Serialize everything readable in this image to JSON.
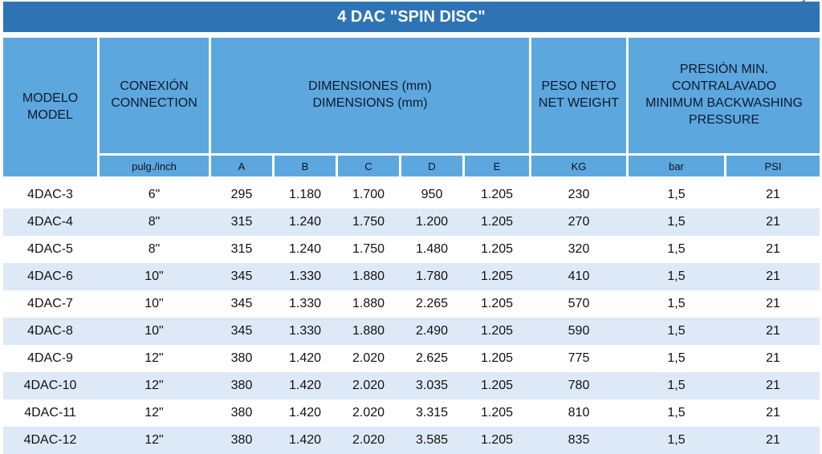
{
  "title": "4 DAC \"SPIN DISC\"",
  "headers": {
    "modelo": [
      "MODELO",
      "MODEL"
    ],
    "conexion": [
      "CONEXIÓN",
      "CONNECTION"
    ],
    "dimensiones": [
      "DIMENSIONES (mm)",
      "DIMENSIONS (mm)"
    ],
    "peso": [
      "PESO NETO",
      "NET WEIGHT"
    ],
    "presion": [
      "PRESIÓN MIN.",
      "CONTRALAVADO",
      "MINIMUM BACKWASHING",
      "PRESSURE"
    ]
  },
  "subheaders": [
    "pulg./inch",
    "A",
    "B",
    "C",
    "D",
    "E",
    "KG",
    "bar",
    "PSI"
  ],
  "rows": [
    [
      "4DAC-3",
      "6\"",
      "295",
      "1.180",
      "1.700",
      "950",
      "1.205",
      "230",
      "1,5",
      "21"
    ],
    [
      "4DAC-4",
      "8\"",
      "315",
      "1.240",
      "1.750",
      "1.200",
      "1.205",
      "270",
      "1,5",
      "21"
    ],
    [
      "4DAC-5",
      "8\"",
      "315",
      "1.240",
      "1.750",
      "1.480",
      "1.205",
      "320",
      "1,5",
      "21"
    ],
    [
      "4DAC-6",
      "10\"",
      "345",
      "1.330",
      "1.880",
      "1.780",
      "1.205",
      "410",
      "1,5",
      "21"
    ],
    [
      "4DAC-7",
      "10\"",
      "345",
      "1.330",
      "1.880",
      "2.265",
      "1.205",
      "570",
      "1,5",
      "21"
    ],
    [
      "4DAC-8",
      "10\"",
      "345",
      "1.330",
      "1.880",
      "2.490",
      "1.205",
      "590",
      "1,5",
      "21"
    ],
    [
      "4DAC-9",
      "12\"",
      "380",
      "1.420",
      "2.020",
      "2.625",
      "1.205",
      "775",
      "1,5",
      "21"
    ],
    [
      "4DAC-10",
      "12\"",
      "380",
      "1.420",
      "2.020",
      "3.035",
      "1.205",
      "780",
      "1,5",
      "21"
    ],
    [
      "4DAC-11",
      "12\"",
      "380",
      "1.420",
      "2.020",
      "3.315",
      "1.205",
      "810",
      "1,5",
      "21"
    ],
    [
      "4DAC-12",
      "12\"",
      "380",
      "1.420",
      "2.020",
      "3.585",
      "1.205",
      "835",
      "1,5",
      "21"
    ]
  ]
}
